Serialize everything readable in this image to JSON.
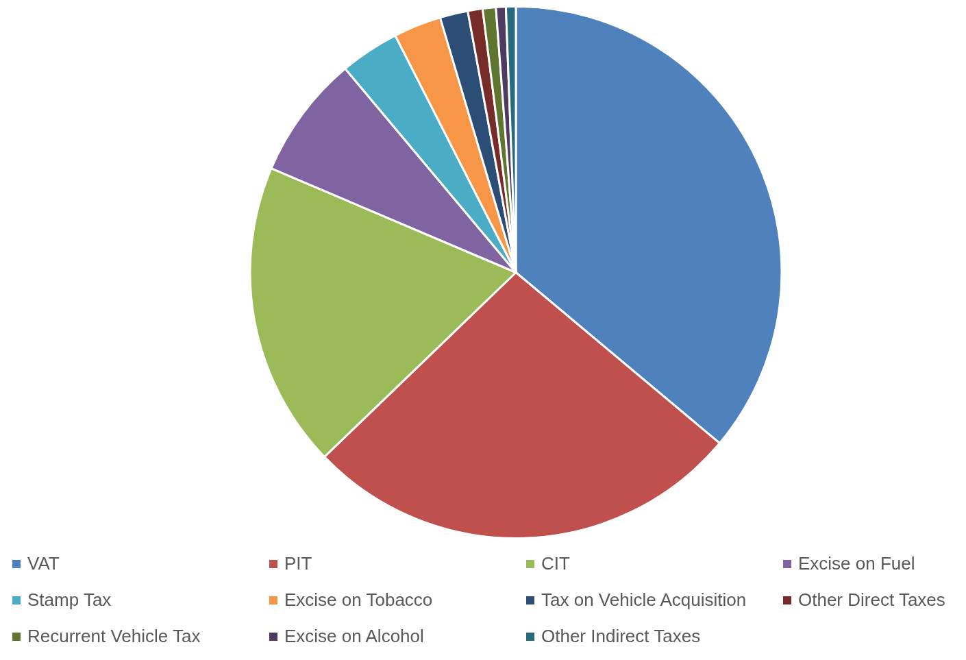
{
  "chart_data": {
    "type": "pie",
    "categories": [
      "VAT",
      "PIT",
      "CIT",
      "Excise on Fuel",
      "Stamp Tax",
      "Excise on Tobacco",
      "Tax on Vehicle Acquisition",
      "Other Direct Taxes",
      "Recurrent Vehicle Tax",
      "Excise on Alcohol",
      "Other Indirect Taxes"
    ],
    "values": [
      36.1,
      26.7,
      18.6,
      7.5,
      3.6,
      2.9,
      1.7,
      0.9,
      0.8,
      0.6,
      0.6
    ],
    "colors": [
      "#4f81bd",
      "#c0504d",
      "#9bbb59",
      "#8064a2",
      "#4bacc6",
      "#f79646",
      "#2c4d75",
      "#772c2a",
      "#5f7530",
      "#4d3b62",
      "#276a7c"
    ],
    "legend": "bottom"
  }
}
